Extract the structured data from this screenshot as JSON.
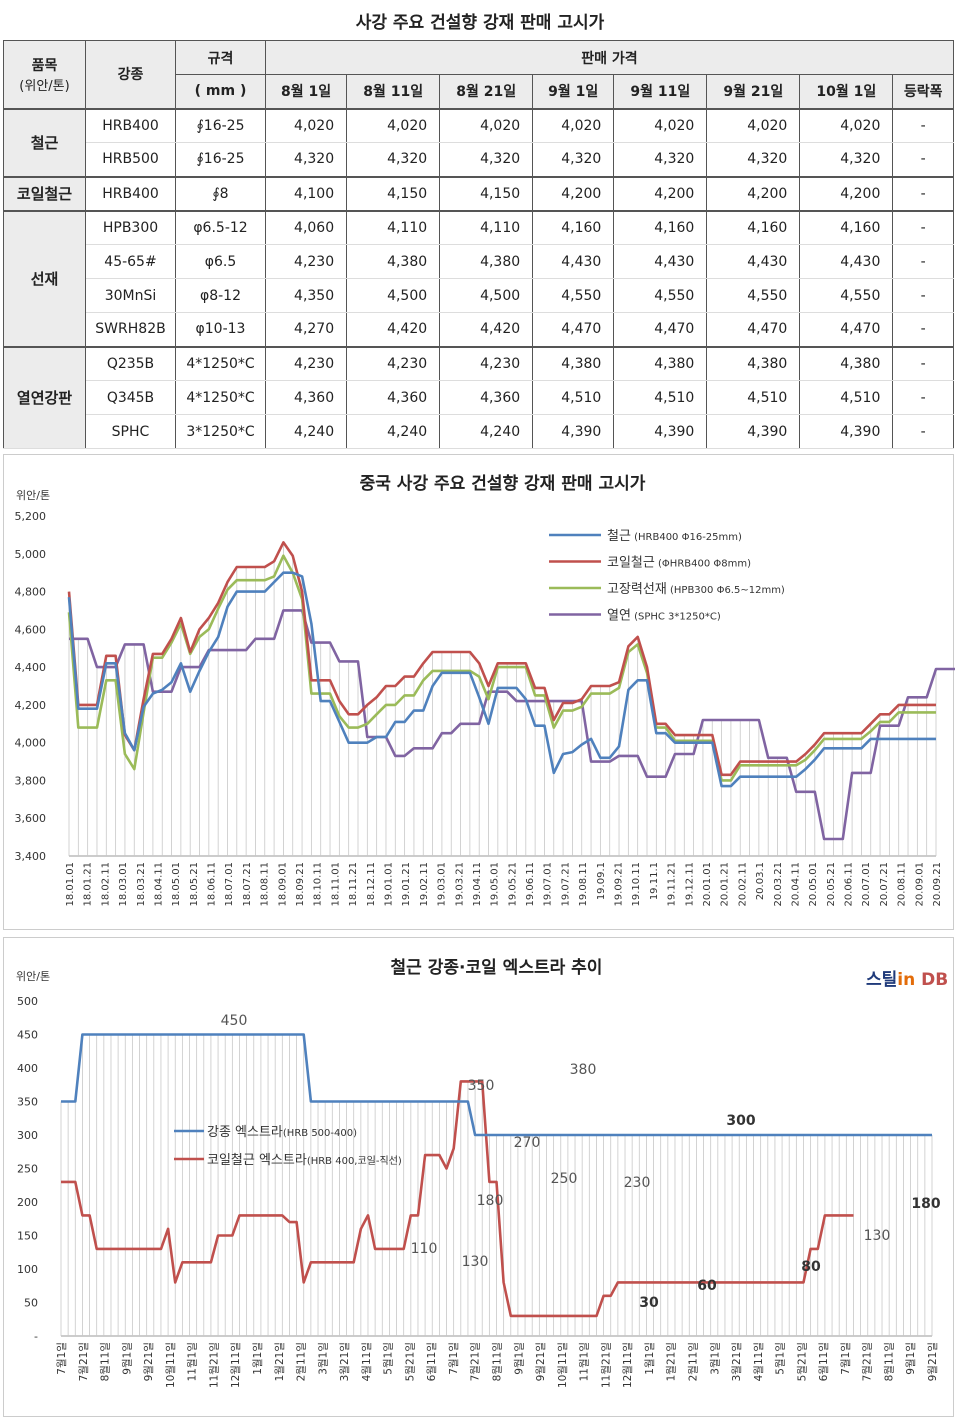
{
  "table": {
    "title": "사강 주요 건설향 강재 판매 고시가",
    "h_item": "품목",
    "h_unit": "(위안/톤)",
    "h_grade": "강종",
    "h_spec": "규격",
    "h_spec_unit": "( mm )",
    "h_price": "판매 가격",
    "dates": [
      "8월 1일",
      "8월 11일",
      "8월 21일",
      "9월 1일",
      "9월 11일",
      "9월 21일",
      "10월 1일",
      "등락폭"
    ],
    "groups": [
      {
        "name": "철근",
        "rows": [
          {
            "grade": "HRB400",
            "spec": "∮16-25",
            "prices": [
              "4,020",
              "4,020",
              "4,020",
              "4,020",
              "4,020",
              "4,020",
              "4,020"
            ],
            "change": "-"
          },
          {
            "grade": "HRB500",
            "spec": "∮16-25",
            "prices": [
              "4,320",
              "4,320",
              "4,320",
              "4,320",
              "4,320",
              "4,320",
              "4,320"
            ],
            "change": "-"
          }
        ]
      },
      {
        "name": "코일철근",
        "rows": [
          {
            "grade": "HRB400",
            "spec": "∮8",
            "prices": [
              "4,100",
              "4,150",
              "4,150",
              "4,200",
              "4,200",
              "4,200",
              "4,200"
            ],
            "change": "-"
          }
        ]
      },
      {
        "name": "선재",
        "rows": [
          {
            "grade": "HPB300",
            "spec": "φ6.5-12",
            "prices": [
              "4,060",
              "4,110",
              "4,110",
              "4,160",
              "4,160",
              "4,160",
              "4,160"
            ],
            "change": "-"
          },
          {
            "grade": "45-65#",
            "spec": "φ6.5",
            "prices": [
              "4,230",
              "4,380",
              "4,380",
              "4,430",
              "4,430",
              "4,430",
              "4,430"
            ],
            "change": "-"
          },
          {
            "grade": "30MnSi",
            "spec": "φ8-12",
            "prices": [
              "4,350",
              "4,500",
              "4,500",
              "4,550",
              "4,550",
              "4,550",
              "4,550"
            ],
            "change": "-"
          },
          {
            "grade": "SWRH82B",
            "spec": "φ10-13",
            "prices": [
              "4,270",
              "4,420",
              "4,420",
              "4,470",
              "4,470",
              "4,470",
              "4,470"
            ],
            "change": "-"
          }
        ]
      },
      {
        "name": "열연강판",
        "rows": [
          {
            "grade": "Q235B",
            "spec": "4*1250*C",
            "prices": [
              "4,230",
              "4,230",
              "4,230",
              "4,380",
              "4,380",
              "4,380",
              "4,380"
            ],
            "change": "-"
          },
          {
            "grade": "Q345B",
            "spec": "4*1250*C",
            "prices": [
              "4,360",
              "4,360",
              "4,360",
              "4,510",
              "4,510",
              "4,510",
              "4,510"
            ],
            "change": "-"
          },
          {
            "grade": "SPHC",
            "spec": "3*1250*C",
            "prices": [
              "4,240",
              "4,240",
              "4,240",
              "4,390",
              "4,390",
              "4,390",
              "4,390"
            ],
            "change": "-"
          }
        ]
      }
    ]
  },
  "chart_data": [
    {
      "type": "line",
      "title": "중국 사강 주요 건설향 강재 판매 고시가",
      "ylabel": "위안/톤",
      "ylim": [
        3400,
        5200
      ],
      "yticks": [
        "3,400",
        "3,600",
        "3,800",
        "4,000",
        "4,200",
        "4,400",
        "4,600",
        "4,800",
        "5,000",
        "5,200"
      ],
      "xtick_labels": [
        "18.01.01",
        "18.01.21",
        "18.02.11",
        "18.03.01",
        "18.03.21",
        "18.04.11",
        "18.05.01",
        "18.05.21",
        "18.06.11",
        "18.07.01",
        "18.07.21",
        "18.08.11",
        "18.09.01",
        "18.09.21",
        "18.10.11",
        "18.11.01",
        "18.11.21",
        "18.12.11",
        "19.01.01",
        "19.01.21",
        "19.02.11",
        "19.03.01",
        "19.03.21",
        "19.04.11",
        "19.05.01",
        "19.05.21",
        "19.06.11",
        "19.07.01",
        "19.07.21",
        "19.08.11",
        "19.09.1",
        "19.09.21",
        "19.10.11",
        "19.11.1",
        "19.11.21",
        "19.12.11",
        "20.01.01",
        "20.01.21",
        "20.02.11",
        "20.03.1",
        "20.03.21",
        "20.04.11",
        "20.05.01",
        "20.05.21",
        "20.06.11",
        "20.07.01",
        "20.07.21",
        "20.08.11",
        "20.09.01",
        "20.09.21"
      ],
      "series": [
        {
          "name": "철근",
          "note": "(HRB400  Φ16-25mm)",
          "color": "#4f81bd",
          "values": [
            4770,
            4180,
            4180,
            4180,
            4420,
            4420,
            4050,
            3960,
            4190,
            4260,
            4280,
            4320,
            4420,
            4270,
            4380,
            4480,
            4560,
            4720,
            4800,
            4800,
            4800,
            4800,
            4850,
            4900,
            4900,
            4880,
            4630,
            4220,
            4220,
            4110,
            4000,
            4000,
            4000,
            4030,
            4030,
            4110,
            4110,
            4170,
            4170,
            4300,
            4370,
            4370,
            4370,
            4370,
            4240,
            4100,
            4290,
            4290,
            4290,
            4230,
            4090,
            4090,
            3840,
            3940,
            3950,
            3990,
            4020,
            3920,
            3920,
            3980,
            4280,
            4330,
            4330,
            4050,
            4050,
            4000,
            4000,
            4000,
            4000,
            4000,
            3770,
            3770,
            3820,
            3820,
            3820,
            3820,
            3820,
            3820,
            3820,
            3860,
            3910,
            3970,
            3970,
            3970,
            3970,
            3970,
            4020,
            4020,
            4020,
            4020,
            4020,
            4020,
            4020,
            4020
          ]
        },
        {
          "name": "코일철근",
          "note": "(ΦHRB400  Φ8mm)",
          "color": "#c0504d",
          "values": [
            4800,
            4200,
            4200,
            4200,
            4460,
            4460,
            4040,
            3960,
            4230,
            4470,
            4470,
            4550,
            4660,
            4480,
            4600,
            4660,
            4740,
            4850,
            4930,
            4930,
            4930,
            4930,
            4960,
            5060,
            4990,
            4800,
            4330,
            4330,
            4330,
            4220,
            4150,
            4150,
            4200,
            4240,
            4300,
            4300,
            4350,
            4350,
            4420,
            4480,
            4480,
            4480,
            4480,
            4480,
            4420,
            4300,
            4420,
            4420,
            4420,
            4420,
            4290,
            4290,
            4120,
            4210,
            4210,
            4230,
            4300,
            4300,
            4300,
            4320,
            4510,
            4560,
            4400,
            4100,
            4100,
            4040,
            4040,
            4040,
            4040,
            4040,
            3830,
            3830,
            3900,
            3900,
            3900,
            3900,
            3900,
            3900,
            3900,
            3940,
            3990,
            4050,
            4050,
            4050,
            4050,
            4050,
            4100,
            4150,
            4150,
            4200,
            4200,
            4200,
            4200,
            4200
          ]
        },
        {
          "name": "고장력선재",
          "note": "(HPB300  Φ6.5~12mm)",
          "color": "#9bbb59",
          "values": [
            4690,
            4080,
            4080,
            4080,
            4330,
            4330,
            3940,
            3860,
            4160,
            4450,
            4450,
            4530,
            4630,
            4470,
            4560,
            4600,
            4710,
            4810,
            4860,
            4860,
            4860,
            4860,
            4880,
            4990,
            4900,
            4760,
            4260,
            4260,
            4260,
            4140,
            4080,
            4080,
            4100,
            4150,
            4200,
            4200,
            4250,
            4250,
            4330,
            4380,
            4380,
            4380,
            4380,
            4380,
            4350,
            4230,
            4400,
            4400,
            4400,
            4400,
            4250,
            4250,
            4080,
            4170,
            4170,
            4190,
            4260,
            4260,
            4260,
            4290,
            4480,
            4520,
            4370,
            4080,
            4080,
            4010,
            4010,
            4010,
            4010,
            4010,
            3800,
            3800,
            3880,
            3880,
            3880,
            3880,
            3880,
            3880,
            3880,
            3910,
            3960,
            4020,
            4020,
            4020,
            4020,
            4020,
            4060,
            4110,
            4110,
            4160,
            4160,
            4160,
            4160,
            4160
          ]
        },
        {
          "name": "열연",
          "note": "(SPHC 3*1250*C)",
          "color": "#8064a2",
          "values": [
            4550,
            4550,
            4550,
            4400,
            4400,
            4400,
            4520,
            4520,
            4520,
            4270,
            4270,
            4270,
            4400,
            4400,
            4400,
            4490,
            4490,
            4490,
            4490,
            4490,
            4550,
            4550,
            4550,
            4700,
            4700,
            4700,
            4530,
            4530,
            4530,
            4430,
            4430,
            4430,
            4030,
            4030,
            4030,
            3930,
            3930,
            3970,
            3970,
            3970,
            4050,
            4050,
            4100,
            4100,
            4100,
            4270,
            4270,
            4270,
            4220,
            4220,
            4220,
            4220,
            4220,
            4220,
            4220,
            4220,
            3900,
            3900,
            3900,
            3930,
            3930,
            3930,
            3820,
            3820,
            3820,
            3940,
            3940,
            3940,
            4120,
            4120,
            4120,
            4120,
            4120,
            4120,
            4120,
            3920,
            3920,
            3920,
            3740,
            3740,
            3740,
            3490,
            3490,
            3490,
            3840,
            3840,
            3840,
            4090,
            4090,
            4090,
            4240,
            4240,
            4240,
            4390,
            4390,
            4390,
            4390
          ]
        }
      ]
    },
    {
      "type": "line",
      "title": "철근 강종·코일 엑스트라 추이",
      "ylabel": "위안/톤",
      "ylim": [
        0,
        500
      ],
      "yticks": [
        "-",
        "50",
        "100",
        "150",
        "200",
        "250",
        "300",
        "350",
        "400",
        "450",
        "500"
      ],
      "xtick_labels": [
        "7월1일",
        "7월21일",
        "8월11일",
        "9월1일",
        "9월21일",
        "10월11일",
        "11월1일",
        "11월21일",
        "12월11일",
        "1월1일",
        "1월21일",
        "2월11일",
        "3월1일",
        "3월21일",
        "4월11일",
        "5월1일",
        "5월21일",
        "6월11일",
        "7월1일",
        "7월21일",
        "8월11일",
        "9월1일",
        "9월21일",
        "10월11일",
        "11월1일",
        "11월21일",
        "12월11일",
        "1월1일",
        "1월21일",
        "2월11일",
        "3월1일",
        "3월21일",
        "4월11일",
        "5월1일",
        "5월21일",
        "6월11일",
        "7월1일",
        "7월21일",
        "8월11일",
        "9월1일",
        "9월21일"
      ],
      "series": [
        {
          "name": "강종 엑스트라",
          "note": "(HRB 500-400)",
          "color": "#4f81bd",
          "values": [
            350,
            350,
            350,
            450,
            450,
            450,
            450,
            450,
            450,
            450,
            450,
            450,
            450,
            450,
            450,
            450,
            450,
            450,
            450,
            450,
            450,
            450,
            450,
            450,
            450,
            450,
            450,
            450,
            450,
            450,
            450,
            450,
            450,
            450,
            450,
            350,
            350,
            350,
            350,
            350,
            350,
            350,
            350,
            350,
            350,
            350,
            350,
            350,
            350,
            350,
            350,
            350,
            350,
            350,
            350,
            350,
            350,
            350,
            300,
            300,
            300,
            300,
            300,
            300,
            300,
            300,
            300,
            300,
            300,
            300,
            300,
            300,
            300,
            300,
            300,
            300,
            300,
            300,
            300,
            300,
            300,
            300,
            300,
            300,
            300,
            300,
            300,
            300,
            300,
            300,
            300,
            300,
            300,
            300,
            300,
            300,
            300,
            300,
            300,
            300,
            300,
            300,
            300,
            300,
            300,
            300,
            300,
            300,
            300,
            300,
            300,
            300,
            300,
            300,
            300,
            300,
            300,
            300,
            300,
            300,
            300,
            300,
            300
          ]
        },
        {
          "name": "코일철근 엑스트라",
          "note": "(HRB 400,코일-직선)",
          "color": "#c0504d",
          "values": [
            230,
            230,
            230,
            180,
            180,
            130,
            130,
            130,
            130,
            130,
            130,
            130,
            130,
            130,
            130,
            160,
            80,
            110,
            110,
            110,
            110,
            110,
            150,
            150,
            150,
            180,
            180,
            180,
            180,
            180,
            180,
            180,
            170,
            170,
            80,
            110,
            110,
            110,
            110,
            110,
            110,
            110,
            160,
            180,
            130,
            130,
            130,
            130,
            130,
            180,
            180,
            270,
            270,
            270,
            250,
            280,
            380,
            380,
            380,
            380,
            230,
            230,
            80,
            30,
            30,
            30,
            30,
            30,
            30,
            30,
            30,
            30,
            30,
            30,
            30,
            30,
            60,
            60,
            80,
            80,
            80,
            80,
            80,
            80,
            80,
            80,
            80,
            80,
            80,
            80,
            80,
            80,
            80,
            80,
            80,
            80,
            80,
            80,
            80,
            80,
            80,
            80,
            80,
            80,
            80,
            130,
            130,
            180,
            180,
            180,
            180,
            180
          ]
        }
      ],
      "annotations": [
        "450",
        "350",
        "300",
        "380",
        "270",
        "250",
        "230",
        "180",
        "110",
        "130",
        "30",
        "60",
        "80",
        "130",
        "180"
      ]
    }
  ],
  "logo": {
    "part1": "스틸",
    "part2": "in",
    "part3": " DB"
  }
}
